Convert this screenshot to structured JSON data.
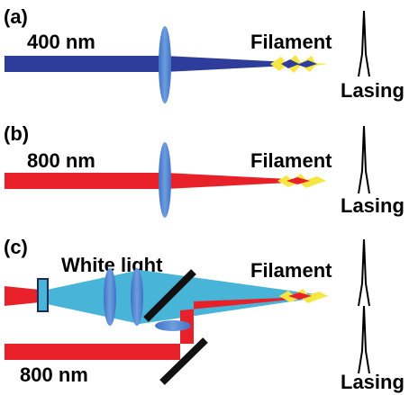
{
  "panels": [
    {
      "label": "(a)",
      "wavelength": "400 nm",
      "filament": "Filament",
      "lasing": "Lasing"
    },
    {
      "label": "(b)",
      "wavelength": "800 nm",
      "filament": "Filament",
      "lasing": "Lasing"
    },
    {
      "label": "(c)",
      "white_light": "White light",
      "filament": "Filament",
      "wavelength": "800 nm",
      "lasing": "Lasing"
    }
  ]
}
